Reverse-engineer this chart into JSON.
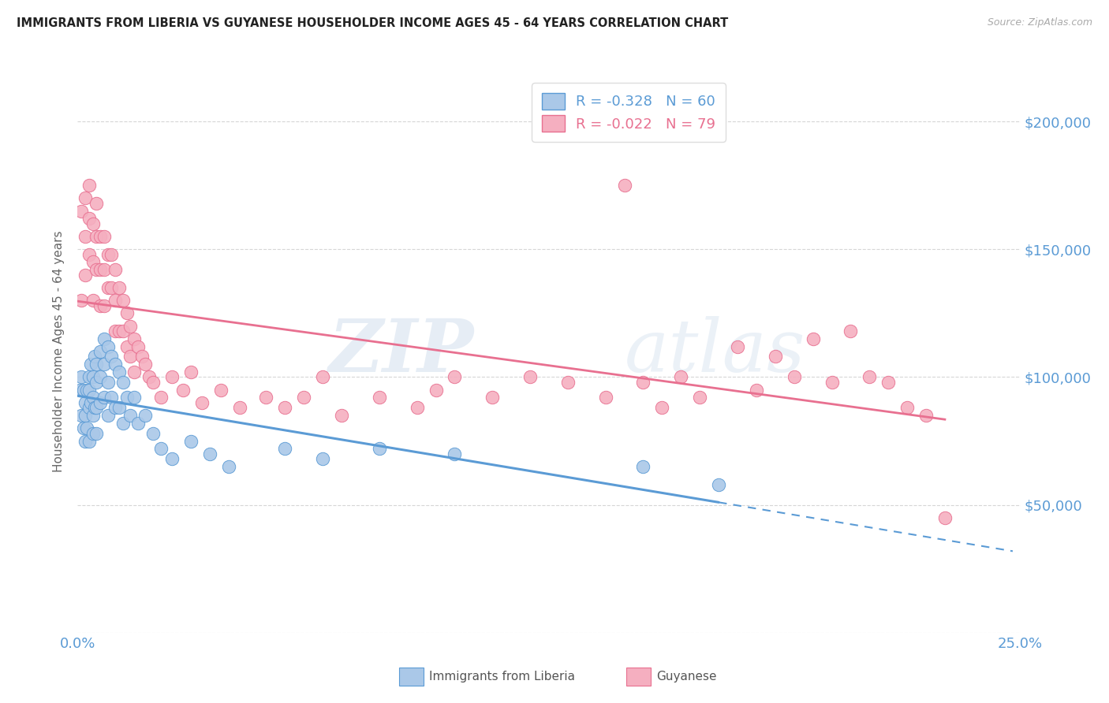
{
  "title": "IMMIGRANTS FROM LIBERIA VS GUYANESE HOUSEHOLDER INCOME AGES 45 - 64 YEARS CORRELATION CHART",
  "source": "Source: ZipAtlas.com",
  "ylabel": "Householder Income Ages 45 - 64 years",
  "xlim": [
    0.0,
    0.25
  ],
  "ylim": [
    0,
    220000
  ],
  "xticks": [
    0.0,
    0.05,
    0.1,
    0.15,
    0.2,
    0.25
  ],
  "xticklabels": [
    "0.0%",
    "",
    "",
    "",
    "",
    "25.0%"
  ],
  "yticks": [
    0,
    50000,
    100000,
    150000,
    200000
  ],
  "yticklabels": [
    "",
    "$50,000",
    "$100,000",
    "$150,000",
    "$200,000"
  ],
  "legend_labels": [
    "R = -0.328   N = 60",
    "R = -0.022   N = 79"
  ],
  "liberia_color": "#aac8e8",
  "guyanese_color": "#f5afc0",
  "liberia_line_color": "#5b9bd5",
  "guyanese_line_color": "#e87090",
  "liberia_scatter_x": [
    0.0005,
    0.001,
    0.001,
    0.0015,
    0.0015,
    0.002,
    0.002,
    0.002,
    0.0025,
    0.0025,
    0.003,
    0.003,
    0.003,
    0.003,
    0.0035,
    0.0035,
    0.004,
    0.004,
    0.004,
    0.004,
    0.0045,
    0.0045,
    0.005,
    0.005,
    0.005,
    0.005,
    0.006,
    0.006,
    0.006,
    0.007,
    0.007,
    0.007,
    0.008,
    0.008,
    0.008,
    0.009,
    0.009,
    0.01,
    0.01,
    0.011,
    0.011,
    0.012,
    0.012,
    0.013,
    0.014,
    0.015,
    0.016,
    0.018,
    0.02,
    0.022,
    0.025,
    0.03,
    0.035,
    0.04,
    0.055,
    0.065,
    0.08,
    0.1,
    0.15,
    0.17
  ],
  "liberia_scatter_y": [
    95000,
    100000,
    85000,
    95000,
    80000,
    90000,
    85000,
    75000,
    95000,
    80000,
    100000,
    95000,
    88000,
    75000,
    105000,
    90000,
    100000,
    92000,
    85000,
    78000,
    108000,
    88000,
    105000,
    98000,
    88000,
    78000,
    110000,
    100000,
    90000,
    115000,
    105000,
    92000,
    112000,
    98000,
    85000,
    108000,
    92000,
    105000,
    88000,
    102000,
    88000,
    98000,
    82000,
    92000,
    85000,
    92000,
    82000,
    85000,
    78000,
    72000,
    68000,
    75000,
    70000,
    65000,
    72000,
    68000,
    72000,
    70000,
    65000,
    58000
  ],
  "guyanese_scatter_x": [
    0.001,
    0.001,
    0.002,
    0.002,
    0.002,
    0.003,
    0.003,
    0.003,
    0.004,
    0.004,
    0.004,
    0.005,
    0.005,
    0.005,
    0.006,
    0.006,
    0.006,
    0.007,
    0.007,
    0.007,
    0.008,
    0.008,
    0.009,
    0.009,
    0.01,
    0.01,
    0.01,
    0.011,
    0.011,
    0.012,
    0.012,
    0.013,
    0.013,
    0.014,
    0.014,
    0.015,
    0.015,
    0.016,
    0.017,
    0.018,
    0.019,
    0.02,
    0.022,
    0.025,
    0.028,
    0.03,
    0.033,
    0.038,
    0.043,
    0.05,
    0.055,
    0.06,
    0.065,
    0.07,
    0.08,
    0.09,
    0.095,
    0.1,
    0.11,
    0.12,
    0.13,
    0.14,
    0.145,
    0.15,
    0.155,
    0.16,
    0.165,
    0.175,
    0.18,
    0.185,
    0.19,
    0.195,
    0.2,
    0.205,
    0.21,
    0.215,
    0.22,
    0.225,
    0.23
  ],
  "guyanese_scatter_y": [
    165000,
    130000,
    170000,
    155000,
    140000,
    175000,
    162000,
    148000,
    160000,
    145000,
    130000,
    168000,
    155000,
    142000,
    155000,
    142000,
    128000,
    155000,
    142000,
    128000,
    148000,
    135000,
    148000,
    135000,
    142000,
    130000,
    118000,
    135000,
    118000,
    130000,
    118000,
    125000,
    112000,
    120000,
    108000,
    115000,
    102000,
    112000,
    108000,
    105000,
    100000,
    98000,
    92000,
    100000,
    95000,
    102000,
    90000,
    95000,
    88000,
    92000,
    88000,
    92000,
    100000,
    85000,
    92000,
    88000,
    95000,
    100000,
    92000,
    100000,
    98000,
    92000,
    175000,
    98000,
    88000,
    100000,
    92000,
    112000,
    95000,
    108000,
    100000,
    115000,
    98000,
    118000,
    100000,
    98000,
    88000,
    85000,
    45000
  ],
  "watermark_zip": "ZIP",
  "watermark_atlas": "atlas",
  "background_color": "#ffffff",
  "grid_color": "#cccccc",
  "tick_color": "#5b9bd5",
  "bottom_legend": [
    "Immigrants from Liberia",
    "Guyanese"
  ]
}
